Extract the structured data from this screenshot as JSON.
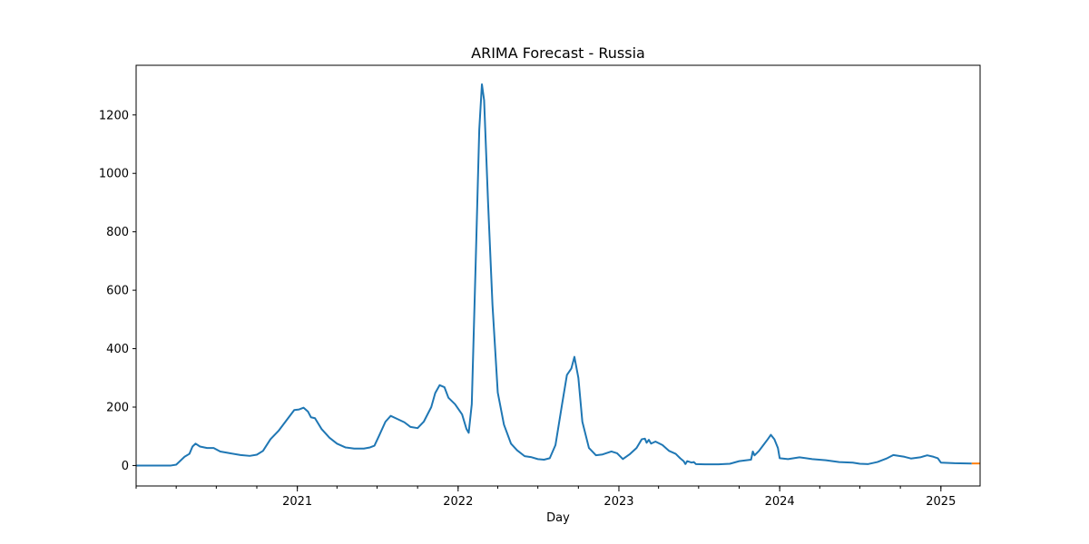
{
  "chart_data": {
    "type": "line",
    "title": "ARIMA Forecast - Russia",
    "xlabel": "Day",
    "ylabel": "",
    "xlim": [
      "2020-01-01",
      "2025-03-31"
    ],
    "ylim": [
      -70,
      1370
    ],
    "yticks": [
      0,
      200,
      400,
      600,
      800,
      1000,
      1200
    ],
    "xticks": [
      {
        "date": "2021-01-01",
        "label": "2021"
      },
      {
        "date": "2022-01-01",
        "label": "2022"
      },
      {
        "date": "2023-01-01",
        "label": "2023"
      },
      {
        "date": "2024-01-01",
        "label": "2024"
      },
      {
        "date": "2025-01-01",
        "label": "2025"
      }
    ],
    "grid": false,
    "series": [
      {
        "color": "#1f77b4",
        "points": [
          [
            "2020-01-01",
            0
          ],
          [
            "2020-02-15",
            0
          ],
          [
            "2020-03-20",
            0
          ],
          [
            "2020-04-01",
            3
          ],
          [
            "2020-04-20",
            30
          ],
          [
            "2020-05-01",
            40
          ],
          [
            "2020-05-08",
            65
          ],
          [
            "2020-05-15",
            75
          ],
          [
            "2020-05-25",
            65
          ],
          [
            "2020-06-10",
            60
          ],
          [
            "2020-06-25",
            60
          ],
          [
            "2020-07-10",
            48
          ],
          [
            "2020-08-01",
            42
          ],
          [
            "2020-08-25",
            36
          ],
          [
            "2020-09-15",
            33
          ],
          [
            "2020-10-01",
            37
          ],
          [
            "2020-10-15",
            50
          ],
          [
            "2020-11-01",
            90
          ],
          [
            "2020-11-20",
            120
          ],
          [
            "2020-12-10",
            160
          ],
          [
            "2020-12-25",
            190
          ],
          [
            "2021-01-05",
            192
          ],
          [
            "2021-01-15",
            198
          ],
          [
            "2021-01-25",
            185
          ],
          [
            "2021-02-01",
            165
          ],
          [
            "2021-02-10",
            162
          ],
          [
            "2021-02-25",
            125
          ],
          [
            "2021-03-15",
            95
          ],
          [
            "2021-04-01",
            75
          ],
          [
            "2021-04-20",
            62
          ],
          [
            "2021-05-10",
            58
          ],
          [
            "2021-06-01",
            58
          ],
          [
            "2021-06-15",
            62
          ],
          [
            "2021-06-25",
            68
          ],
          [
            "2021-07-05",
            100
          ],
          [
            "2021-07-20",
            150
          ],
          [
            "2021-08-01",
            170
          ],
          [
            "2021-08-15",
            160
          ],
          [
            "2021-09-01",
            148
          ],
          [
            "2021-09-15",
            132
          ],
          [
            "2021-10-01",
            128
          ],
          [
            "2021-10-15",
            150
          ],
          [
            "2021-11-01",
            200
          ],
          [
            "2021-11-10",
            248
          ],
          [
            "2021-11-20",
            275
          ],
          [
            "2021-12-01",
            268
          ],
          [
            "2021-12-10",
            232
          ],
          [
            "2021-12-25",
            210
          ],
          [
            "2022-01-10",
            175
          ],
          [
            "2022-01-20",
            125
          ],
          [
            "2022-01-25",
            112
          ],
          [
            "2022-02-01",
            210
          ],
          [
            "2022-02-10",
            700
          ],
          [
            "2022-02-18",
            1150
          ],
          [
            "2022-02-24",
            1305
          ],
          [
            "2022-03-01",
            1250
          ],
          [
            "2022-03-10",
            900
          ],
          [
            "2022-03-20",
            550
          ],
          [
            "2022-04-01",
            250
          ],
          [
            "2022-04-15",
            140
          ],
          [
            "2022-05-01",
            75
          ],
          [
            "2022-05-15",
            52
          ],
          [
            "2022-06-01",
            32
          ],
          [
            "2022-06-15",
            29
          ],
          [
            "2022-07-01",
            22
          ],
          [
            "2022-07-15",
            20
          ],
          [
            "2022-07-28",
            25
          ],
          [
            "2022-08-10",
            70
          ],
          [
            "2022-08-25",
            210
          ],
          [
            "2022-09-05",
            310
          ],
          [
            "2022-09-15",
            332
          ],
          [
            "2022-09-22",
            372
          ],
          [
            "2022-10-01",
            300
          ],
          [
            "2022-10-10",
            150
          ],
          [
            "2022-10-25",
            60
          ],
          [
            "2022-11-10",
            35
          ],
          [
            "2022-11-25",
            38
          ],
          [
            "2022-12-15",
            48
          ],
          [
            "2022-12-28",
            42
          ],
          [
            "2023-01-10",
            22
          ],
          [
            "2023-01-25",
            38
          ],
          [
            "2023-02-10",
            60
          ],
          [
            "2023-02-22",
            90
          ],
          [
            "2023-03-01",
            92
          ],
          [
            "2023-03-05",
            78
          ],
          [
            "2023-03-10",
            88
          ],
          [
            "2023-03-15",
            75
          ],
          [
            "2023-03-25",
            82
          ],
          [
            "2023-04-10",
            70
          ],
          [
            "2023-04-25",
            50
          ],
          [
            "2023-05-10",
            40
          ],
          [
            "2023-05-20",
            25
          ],
          [
            "2023-05-28",
            15
          ],
          [
            "2023-06-01",
            5
          ],
          [
            "2023-06-05",
            15
          ],
          [
            "2023-06-15",
            10
          ],
          [
            "2023-06-20",
            12
          ],
          [
            "2023-06-25",
            5
          ],
          [
            "2023-07-15",
            4
          ],
          [
            "2023-08-15",
            4
          ],
          [
            "2023-09-10",
            6
          ],
          [
            "2023-10-01",
            15
          ],
          [
            "2023-10-28",
            20
          ],
          [
            "2023-11-01",
            48
          ],
          [
            "2023-11-05",
            35
          ],
          [
            "2023-11-15",
            50
          ],
          [
            "2023-11-25",
            70
          ],
          [
            "2023-12-05",
            90
          ],
          [
            "2023-12-12",
            105
          ],
          [
            "2023-12-20",
            90
          ],
          [
            "2023-12-28",
            60
          ],
          [
            "2024-01-01",
            25
          ],
          [
            "2024-01-20",
            22
          ],
          [
            "2024-02-15",
            28
          ],
          [
            "2024-03-15",
            22
          ],
          [
            "2024-04-15",
            18
          ],
          [
            "2024-05-15",
            12
          ],
          [
            "2024-06-15",
            10
          ],
          [
            "2024-07-01",
            6
          ],
          [
            "2024-07-20",
            5
          ],
          [
            "2024-08-10",
            12
          ],
          [
            "2024-09-01",
            25
          ],
          [
            "2024-09-15",
            36
          ],
          [
            "2024-10-10",
            30
          ],
          [
            "2024-10-25",
            24
          ],
          [
            "2024-11-15",
            28
          ],
          [
            "2024-12-01",
            35
          ],
          [
            "2024-12-15",
            30
          ],
          [
            "2024-12-25",
            25
          ],
          [
            "2025-01-01",
            10
          ],
          [
            "2025-02-01",
            8
          ],
          [
            "2025-03-12",
            7
          ]
        ]
      },
      {
        "color": "#ff7f0e",
        "points": [
          [
            "2025-03-12",
            7
          ],
          [
            "2025-03-31",
            7
          ]
        ]
      }
    ]
  }
}
